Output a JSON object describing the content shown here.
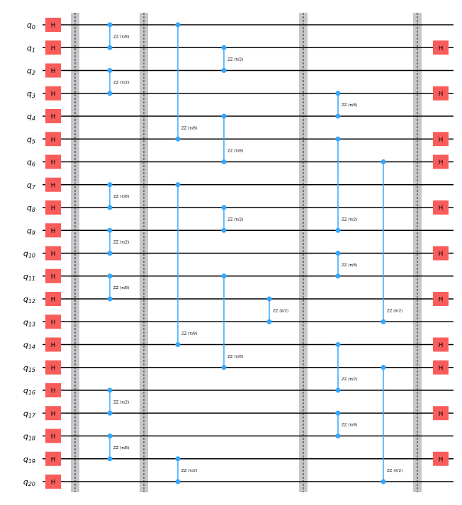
{
  "qubits": [
    "0",
    "1",
    "2",
    "3",
    "4",
    "5",
    "6",
    "7",
    "8",
    "9",
    "10",
    "11",
    "12",
    "13",
    "14",
    "15",
    "16",
    "17",
    "18",
    "19",
    "20"
  ],
  "qubit_prefix": "q",
  "gate_label_h": "H",
  "colors": {
    "h_gate": "#fa5c5c",
    "zz_gate": "#33a7ff",
    "barrier": "#c8c6ca",
    "wire": "#000000"
  },
  "initial_h_qubits": [
    0,
    1,
    2,
    3,
    4,
    5,
    6,
    7,
    8,
    9,
    10,
    11,
    12,
    13,
    14,
    15,
    16,
    17,
    18,
    19,
    20
  ],
  "final_h_qubits": [
    1,
    3,
    5,
    6,
    8,
    10,
    12,
    14,
    15,
    17,
    19
  ],
  "barrier_count": 4,
  "zz_gates": [
    {
      "col": 0,
      "a": 0,
      "b": 1,
      "label": "ZZ (π/8)"
    },
    {
      "col": 0,
      "a": 2,
      "b": 3,
      "label": "ZZ (π/2)"
    },
    {
      "col": 0,
      "a": 7,
      "b": 8,
      "label": "ZZ (π/8)"
    },
    {
      "col": 0,
      "a": 9,
      "b": 10,
      "label": "ZZ (π/2)"
    },
    {
      "col": 0,
      "a": 11,
      "b": 12,
      "label": "ZZ (π/8)"
    },
    {
      "col": 0,
      "a": 16,
      "b": 17,
      "label": "ZZ (π/2)"
    },
    {
      "col": 0,
      "a": 18,
      "b": 19,
      "label": "ZZ (π/8)"
    },
    {
      "col": 1,
      "a": 0,
      "b": 5,
      "label": "ZZ (π/8)"
    },
    {
      "col": 1,
      "a": 7,
      "b": 14,
      "label": "ZZ (π/8)"
    },
    {
      "col": 1,
      "a": 19,
      "b": 20,
      "label": "ZZ (π/2)"
    },
    {
      "col": 2,
      "a": 1,
      "b": 2,
      "label": "ZZ (π/2)"
    },
    {
      "col": 2,
      "a": 4,
      "b": 6,
      "label": "ZZ (π/8)"
    },
    {
      "col": 2,
      "a": 8,
      "b": 9,
      "label": "ZZ (π/2)"
    },
    {
      "col": 2,
      "a": 11,
      "b": 15,
      "label": "ZZ (π/8)"
    },
    {
      "col": 3,
      "a": 12,
      "b": 13,
      "label": "ZZ (π/2)"
    },
    {
      "col": 4,
      "a": 3,
      "b": 4,
      "label": "ZZ (π/8)"
    },
    {
      "col": 4,
      "a": 5,
      "b": 9,
      "label": "ZZ (π/2)"
    },
    {
      "col": 4,
      "a": 10,
      "b": 11,
      "label": "ZZ (π/8)"
    },
    {
      "col": 4,
      "a": 14,
      "b": 16,
      "label": "ZZ (π/2)"
    },
    {
      "col": 4,
      "a": 17,
      "b": 18,
      "label": "ZZ (π/8)"
    },
    {
      "col": 5,
      "a": 6,
      "b": 13,
      "label": "ZZ (π/2)"
    },
    {
      "col": 5,
      "a": 15,
      "b": 20,
      "label": "ZZ (π/2)"
    }
  ]
}
